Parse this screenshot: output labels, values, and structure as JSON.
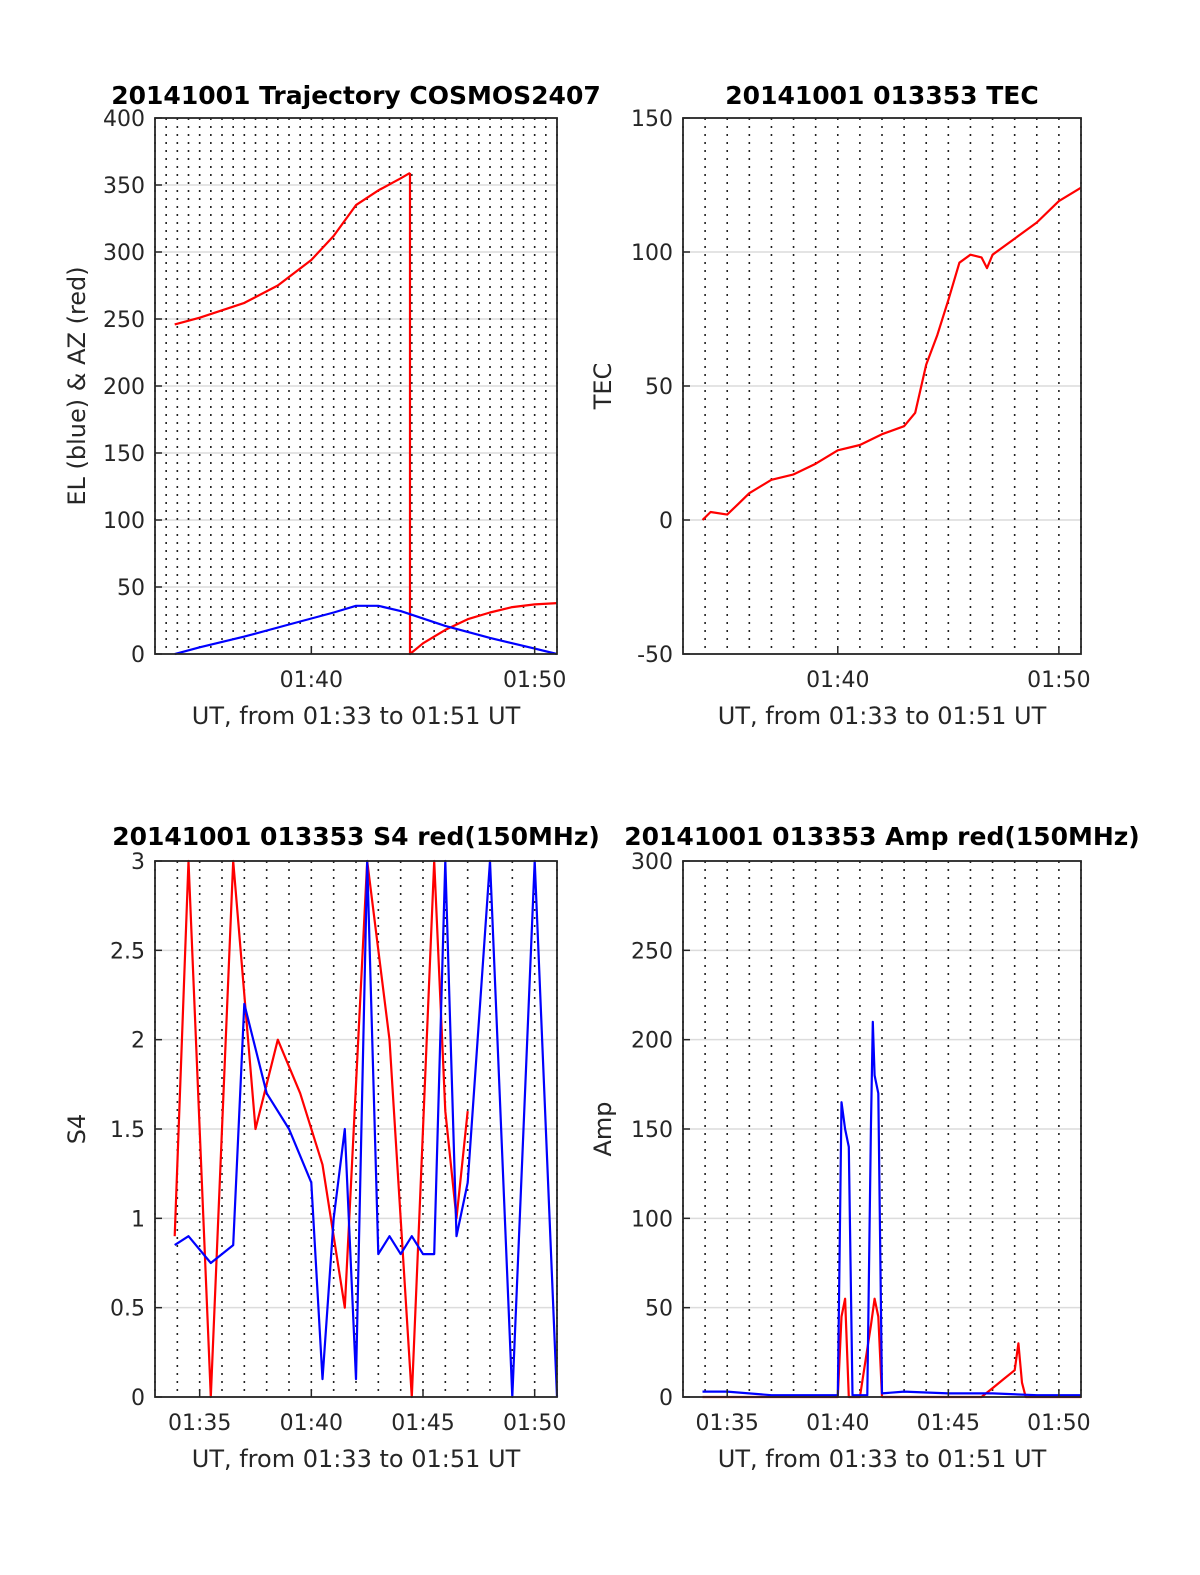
{
  "chart_data": [
    {
      "type": "line",
      "title": "20141001 Trajectory COSMOS2407",
      "xlabel": "UT, from 01:33 to 01:51 UT",
      "ylabel": "EL (blue) & AZ (red)",
      "xlim_minutes": [
        93.0,
        111.0
      ],
      "ylim": [
        0,
        400
      ],
      "yticks": [
        0,
        50,
        100,
        150,
        200,
        250,
        300,
        350,
        400
      ],
      "xticks": [
        "01:40",
        "01:50"
      ],
      "grid": "dotted vertical every 0.5 min, horizontal at y ticks",
      "series": [
        {
          "color": "#ff0000",
          "segments": [
            {
              "x": [
                "01:33:53",
                "01:35",
                "01:37",
                "01:38:30",
                "01:40",
                "01:41",
                "01:42",
                "01:43",
                "01:44",
                "01:44:25"
              ],
              "y": [
                246,
                251,
                262,
                275,
                294,
                312,
                335,
                346,
                355,
                359
              ]
            },
            {
              "x": [
                "01:44:25",
                "01:44:25",
                "01:45",
                "01:46",
                "01:47",
                "01:48",
                "01:49",
                "01:50",
                "01:51"
              ],
              "y": [
                359,
                0,
                8,
                18,
                26,
                31,
                35,
                37,
                38
              ]
            }
          ]
        },
        {
          "color": "#0000ff",
          "segments": [
            {
              "x": [
                "01:33:53",
                "01:35",
                "01:37",
                "01:39",
                "01:41",
                "01:42",
                "01:43",
                "01:44",
                "01:46",
                "01:48",
                "01:50",
                "01:51"
              ],
              "y": [
                0,
                5,
                13,
                22,
                31,
                36,
                36,
                32,
                21,
                12,
                4,
                0
              ]
            }
          ]
        }
      ]
    },
    {
      "type": "line",
      "title": "20141001 013353 TEC",
      "xlabel": "UT, from 01:33 to 01:51 UT",
      "ylabel": "TEC",
      "xlim_minutes": [
        93.0,
        111.0
      ],
      "ylim": [
        -50,
        150
      ],
      "yticks": [
        -50,
        0,
        50,
        100,
        150
      ],
      "xticks": [
        "01:40",
        "01:50"
      ],
      "grid": "dotted vertical every 1 min, horizontal at y ticks",
      "series": [
        {
          "color": "#ff0000",
          "segments": [
            {
              "x": [
                "01:33:53",
                "01:34:15",
                "01:35",
                "01:35:30",
                "01:36",
                "01:37",
                "01:38",
                "01:39",
                "01:40",
                "01:41",
                "01:42",
                "01:43",
                "01:43:30",
                "01:44",
                "01:44:30",
                "01:45",
                "01:45:30",
                "01:46",
                "01:46:30",
                "01:46:45",
                "01:47",
                "01:48",
                "01:49",
                "01:50",
                "01:51"
              ],
              "y": [
                0,
                3,
                2,
                6,
                10,
                15,
                17,
                21,
                26,
                28,
                32,
                35,
                40,
                58,
                69,
                82,
                96,
                99,
                98,
                94,
                99,
                105,
                111,
                119,
                124
              ]
            }
          ]
        }
      ]
    },
    {
      "type": "line",
      "title": "20141001 013353 S4 red(150MHz)",
      "xlabel": "UT, from 01:33 to 01:51 UT",
      "ylabel": "S4",
      "xlim_minutes": [
        93.0,
        111.0
      ],
      "ylim": [
        0,
        3
      ],
      "yticks": [
        0,
        0.5,
        1,
        1.5,
        2,
        2.5,
        3
      ],
      "xticks": [
        "01:35",
        "01:40",
        "01:45",
        "01:50"
      ],
      "grid": "dotted vertical every 1 min, horizontal at y ticks",
      "series": [
        {
          "color": "#ff0000",
          "segments": [
            {
              "x": [
                "01:33:53",
                "01:34:30",
                "01:35:30",
                "01:36:30",
                "01:37:30",
                "01:38:30",
                "01:39:30",
                "01:40:30",
                "01:41:30",
                "01:42:30",
                "01:43:30",
                "01:44:30",
                "01:45:30",
                "01:46",
                "01:46:30",
                "01:47"
              ],
              "y": [
                0.9,
                3.0,
                0.0,
                3.0,
                1.5,
                2.0,
                1.7,
                1.3,
                0.5,
                3.0,
                2.0,
                0.0,
                3.0,
                1.6,
                1.0,
                1.6
              ]
            }
          ]
        },
        {
          "color": "#0000ff",
          "segments": [
            {
              "x": [
                "01:33:53",
                "01:34:30",
                "01:35:30",
                "01:36:30",
                "01:37",
                "01:38",
                "01:39",
                "01:40",
                "01:40:30",
                "01:41",
                "01:41:30",
                "01:42",
                "01:42:30",
                "01:43",
                "01:43:30",
                "01:44",
                "01:44:30",
                "01:45",
                "01:45:30",
                "01:46",
                "01:46:30",
                "01:47",
                "01:48",
                "01:49",
                "01:50",
                "01:51"
              ],
              "y": [
                0.85,
                0.9,
                0.75,
                0.85,
                2.2,
                1.7,
                1.5,
                1.2,
                0.1,
                1.0,
                1.5,
                0.1,
                3.0,
                0.8,
                0.9,
                0.8,
                0.9,
                0.8,
                0.8,
                3.0,
                0.9,
                1.2,
                3.0,
                0.0,
                3.0,
                0.0
              ]
            }
          ]
        }
      ]
    },
    {
      "type": "line",
      "title": "20141001 013353 Amp red(150MHz)",
      "xlabel": "UT, from 01:33 to 01:51 UT",
      "ylabel": "Amp",
      "xlim_minutes": [
        93.0,
        111.0
      ],
      "ylim": [
        0,
        300
      ],
      "yticks": [
        0,
        50,
        100,
        150,
        200,
        250,
        300
      ],
      "xticks": [
        "01:35",
        "01:40",
        "01:45",
        "01:50"
      ],
      "grid": "dotted vertical every 1 min, horizontal at y ticks",
      "series": [
        {
          "color": "#ff0000",
          "segments": [
            {
              "x": [
                "01:33:53",
                "01:40",
                "01:40:10",
                "01:40:20",
                "01:40:30",
                "01:41",
                "01:41:30",
                "01:41:40",
                "01:41:50",
                "01:42",
                "01:46:30",
                "01:47",
                "01:47:30",
                "01:48",
                "01:48:10",
                "01:48:20",
                "01:48:30",
                "01:51"
              ],
              "y": [
                0,
                0,
                45,
                55,
                0,
                0,
                40,
                55,
                45,
                0,
                0,
                5,
                10,
                15,
                30,
                8,
                0,
                0
              ]
            }
          ]
        },
        {
          "color": "#0000ff",
          "segments": [
            {
              "x": [
                "01:33:53",
                "01:35",
                "01:37",
                "01:39",
                "01:40",
                "01:40:05",
                "01:40:10",
                "01:40:20",
                "01:40:30",
                "01:40:40",
                "01:41",
                "01:41:20",
                "01:41:30",
                "01:41:35",
                "01:41:40",
                "01:41:50",
                "01:42",
                "01:43",
                "01:45",
                "01:47",
                "01:49",
                "01:51"
              ],
              "y": [
                3,
                3,
                1,
                1,
                1,
                80,
                165,
                150,
                140,
                1,
                1,
                1,
                150,
                210,
                180,
                170,
                2,
                3,
                2,
                2,
                1,
                1
              ]
            }
          ]
        }
      ]
    }
  ]
}
